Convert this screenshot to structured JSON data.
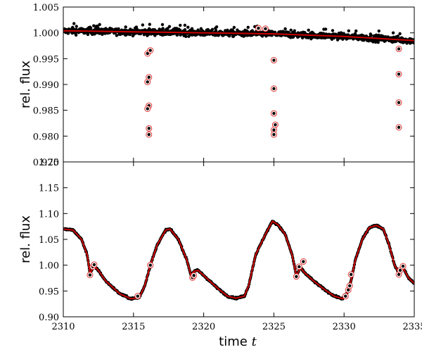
{
  "chart_data": [
    {
      "type": "scatter",
      "panel": "top",
      "ylabel": "rel. flux",
      "xlim": [
        2310,
        2335
      ],
      "ylim": [
        0.975,
        1.005
      ],
      "yticks": [
        0.98,
        0.985,
        0.99,
        0.995,
        1.0,
        1.005
      ],
      "ytick_labels": [
        "0.980",
        "0.985",
        "0.990",
        "0.995",
        "1.000",
        "1.005"
      ],
      "bottom_tick_label": "0.975",
      "grid": false,
      "colors": {
        "data": "#000000",
        "model": "#cc0000",
        "outlier_ring": "#e03030"
      },
      "series": [
        {
          "role": "data",
          "baseline": [
            [
              2310.0,
              1.0004
            ],
            [
              2315.0,
              1.0002
            ],
            [
              2320.0,
              1.0
            ],
            [
              2325.0,
              0.9998
            ],
            [
              2330.0,
              0.9993
            ],
            [
              2335.0,
              0.9985
            ]
          ],
          "scatter": 0.0006
        },
        {
          "role": "model",
          "values": [
            [
              2310.0,
              1.0004
            ],
            [
              2315.0,
              1.0002
            ],
            [
              2320.0,
              1.0
            ],
            [
              2325.0,
              0.9998
            ],
            [
              2330.0,
              0.9993
            ],
            [
              2335.0,
              0.9985
            ]
          ]
        },
        {
          "role": "outliers",
          "points": [
            [
              2316.0,
              0.996
            ],
            [
              2316.2,
              0.9966
            ],
            [
              2316.1,
              0.9914
            ],
            [
              2316.0,
              0.9905
            ],
            [
              2316.1,
              0.9859
            ],
            [
              2316.0,
              0.9853
            ],
            [
              2316.1,
              0.9815
            ],
            [
              2316.1,
              0.9803
            ],
            [
              2323.9,
              1.0009
            ],
            [
              2324.4,
              1.0008
            ],
            [
              2325.0,
              0.9947
            ],
            [
              2325.0,
              0.9892
            ],
            [
              2325.0,
              0.9844
            ],
            [
              2325.1,
              0.9822
            ],
            [
              2325.0,
              0.9812
            ],
            [
              2325.0,
              0.9803
            ],
            [
              2333.9,
              0.9969
            ],
            [
              2333.9,
              0.992
            ],
            [
              2333.9,
              0.9865
            ],
            [
              2333.9,
              0.9817
            ]
          ]
        }
      ]
    },
    {
      "type": "scatter",
      "panel": "bottom",
      "xlabel": "time",
      "xlabel_var": "t",
      "ylabel": "rel. flux",
      "xlim": [
        2310,
        2335
      ],
      "ylim": [
        0.9,
        1.2
      ],
      "xticks": [
        2310,
        2315,
        2320,
        2325,
        2330,
        2335
      ],
      "xtick_labels": [
        "2310",
        "2315",
        "2320",
        "2325",
        "2330",
        "2335"
      ],
      "yticks": [
        0.9,
        0.95,
        1.0,
        1.05,
        1.1,
        1.15
      ],
      "ytick_labels": [
        "0.90",
        "0.95",
        "1.00",
        "1.05",
        "1.10",
        "1.15"
      ],
      "top_tick_label": "1.20",
      "grid": false,
      "colors": {
        "data": "#000000",
        "model": "#cc0000",
        "outlier_ring": "#e03030"
      },
      "series": [
        {
          "role": "model",
          "values": [
            [
              2310.0,
              1.07
            ],
            [
              2310.7,
              1.068
            ],
            [
              2311.3,
              1.05
            ],
            [
              2311.7,
              1.02
            ],
            [
              2311.9,
              0.985
            ],
            [
              2312.2,
              0.998
            ],
            [
              2312.5,
              0.99
            ],
            [
              2313.0,
              0.97
            ],
            [
              2314.0,
              0.945
            ],
            [
              2314.8,
              0.935
            ],
            [
              2315.4,
              0.937
            ],
            [
              2315.8,
              0.96
            ],
            [
              2316.2,
              1.0
            ],
            [
              2316.7,
              1.04
            ],
            [
              2317.3,
              1.068
            ],
            [
              2317.6,
              1.07
            ],
            [
              2318.2,
              1.05
            ],
            [
              2318.8,
              1.01
            ],
            [
              2319.1,
              0.98
            ],
            [
              2319.3,
              0.988
            ],
            [
              2319.6,
              0.99
            ],
            [
              2320.2,
              0.975
            ],
            [
              2321.0,
              0.955
            ],
            [
              2321.7,
              0.94
            ],
            [
              2322.3,
              0.936
            ],
            [
              2322.9,
              0.94
            ],
            [
              2323.2,
              0.96
            ],
            [
              2323.7,
              1.02
            ],
            [
              2324.4,
              1.06
            ],
            [
              2324.9,
              1.085
            ],
            [
              2325.3,
              1.078
            ],
            [
              2325.8,
              1.06
            ],
            [
              2326.3,
              1.02
            ],
            [
              2326.6,
              0.98
            ],
            [
              2326.9,
              0.995
            ],
            [
              2327.2,
              0.985
            ],
            [
              2327.8,
              0.97
            ],
            [
              2328.5,
              0.955
            ],
            [
              2329.3,
              0.94
            ],
            [
              2329.9,
              0.935
            ],
            [
              2330.2,
              0.945
            ],
            [
              2330.5,
              0.97
            ],
            [
              2330.8,
              1.01
            ],
            [
              2331.3,
              1.05
            ],
            [
              2331.8,
              1.073
            ],
            [
              2332.3,
              1.077
            ],
            [
              2332.8,
              1.07
            ],
            [
              2333.2,
              1.04
            ],
            [
              2333.6,
              1.0
            ],
            [
              2333.9,
              0.985
            ],
            [
              2334.2,
              0.995
            ],
            [
              2334.6,
              0.975
            ],
            [
              2335.0,
              0.965
            ]
          ]
        },
        {
          "role": "outliers",
          "points": [
            [
              2311.9,
              0.981
            ],
            [
              2312.1,
              0.997
            ],
            [
              2312.2,
              1.001
            ],
            [
              2315.3,
              0.94
            ],
            [
              2316.2,
              1.0
            ],
            [
              2319.2,
              0.976
            ],
            [
              2319.3,
              0.98
            ],
            [
              2326.6,
              0.978
            ],
            [
              2326.8,
              0.997
            ],
            [
              2327.1,
              1.007
            ],
            [
              2330.1,
              0.94
            ],
            [
              2330.3,
              0.952
            ],
            [
              2330.4,
              0.96
            ],
            [
              2330.5,
              0.982
            ],
            [
              2333.9,
              0.982
            ],
            [
              2334.0,
              0.99
            ],
            [
              2334.2,
              0.998
            ]
          ]
        }
      ]
    }
  ]
}
